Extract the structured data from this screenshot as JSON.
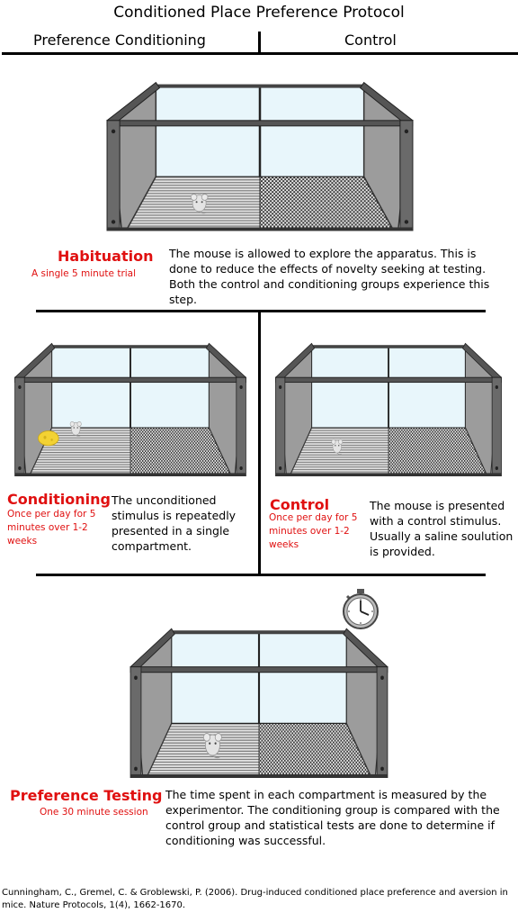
{
  "title": "Conditioned Place Preference Protocol",
  "headers": {
    "left": "Preference Conditioning",
    "right": "Control"
  },
  "habituation": {
    "title": "Habituation",
    "subtitle": "A single 5 minute trial",
    "description": "The mouse is allowed to explore the apparatus.  This is done to reduce the effects of novelty seeking at testing.  Both the control and conditioning groups experience this step."
  },
  "conditioning": {
    "title": "Conditioning",
    "subtitle": "Once per day for 5 minutes over 1-2 weeks",
    "description": "The unconditioned stimulus is repeatedly presented in a single compartment."
  },
  "control": {
    "title": "Control",
    "subtitle": "Once per day for 5 minutes over 1-2 weeks",
    "description": "The mouse is presented with a control stimulus.  Usually a saline soulution is provided."
  },
  "testing": {
    "title": "Preference Testing",
    "subtitle": "One 30 minute session",
    "description": "The time spent in each compartment is measured by the experimentor.  The conditioning group is compared with the control group and statistical tests are done to determine if conditioning was successful."
  },
  "citation": "Cunningham, C., Gremel, C. & Groblewski, P. (2006). Drug-induced conditioned place preference and aversion in mice. Nature Protocols, 1(4), 1662-1670.",
  "colors": {
    "accent": "#e01010",
    "frame": "#5a5a5a",
    "wall": "#9a9a9a",
    "glass": "#e8f6fb"
  }
}
